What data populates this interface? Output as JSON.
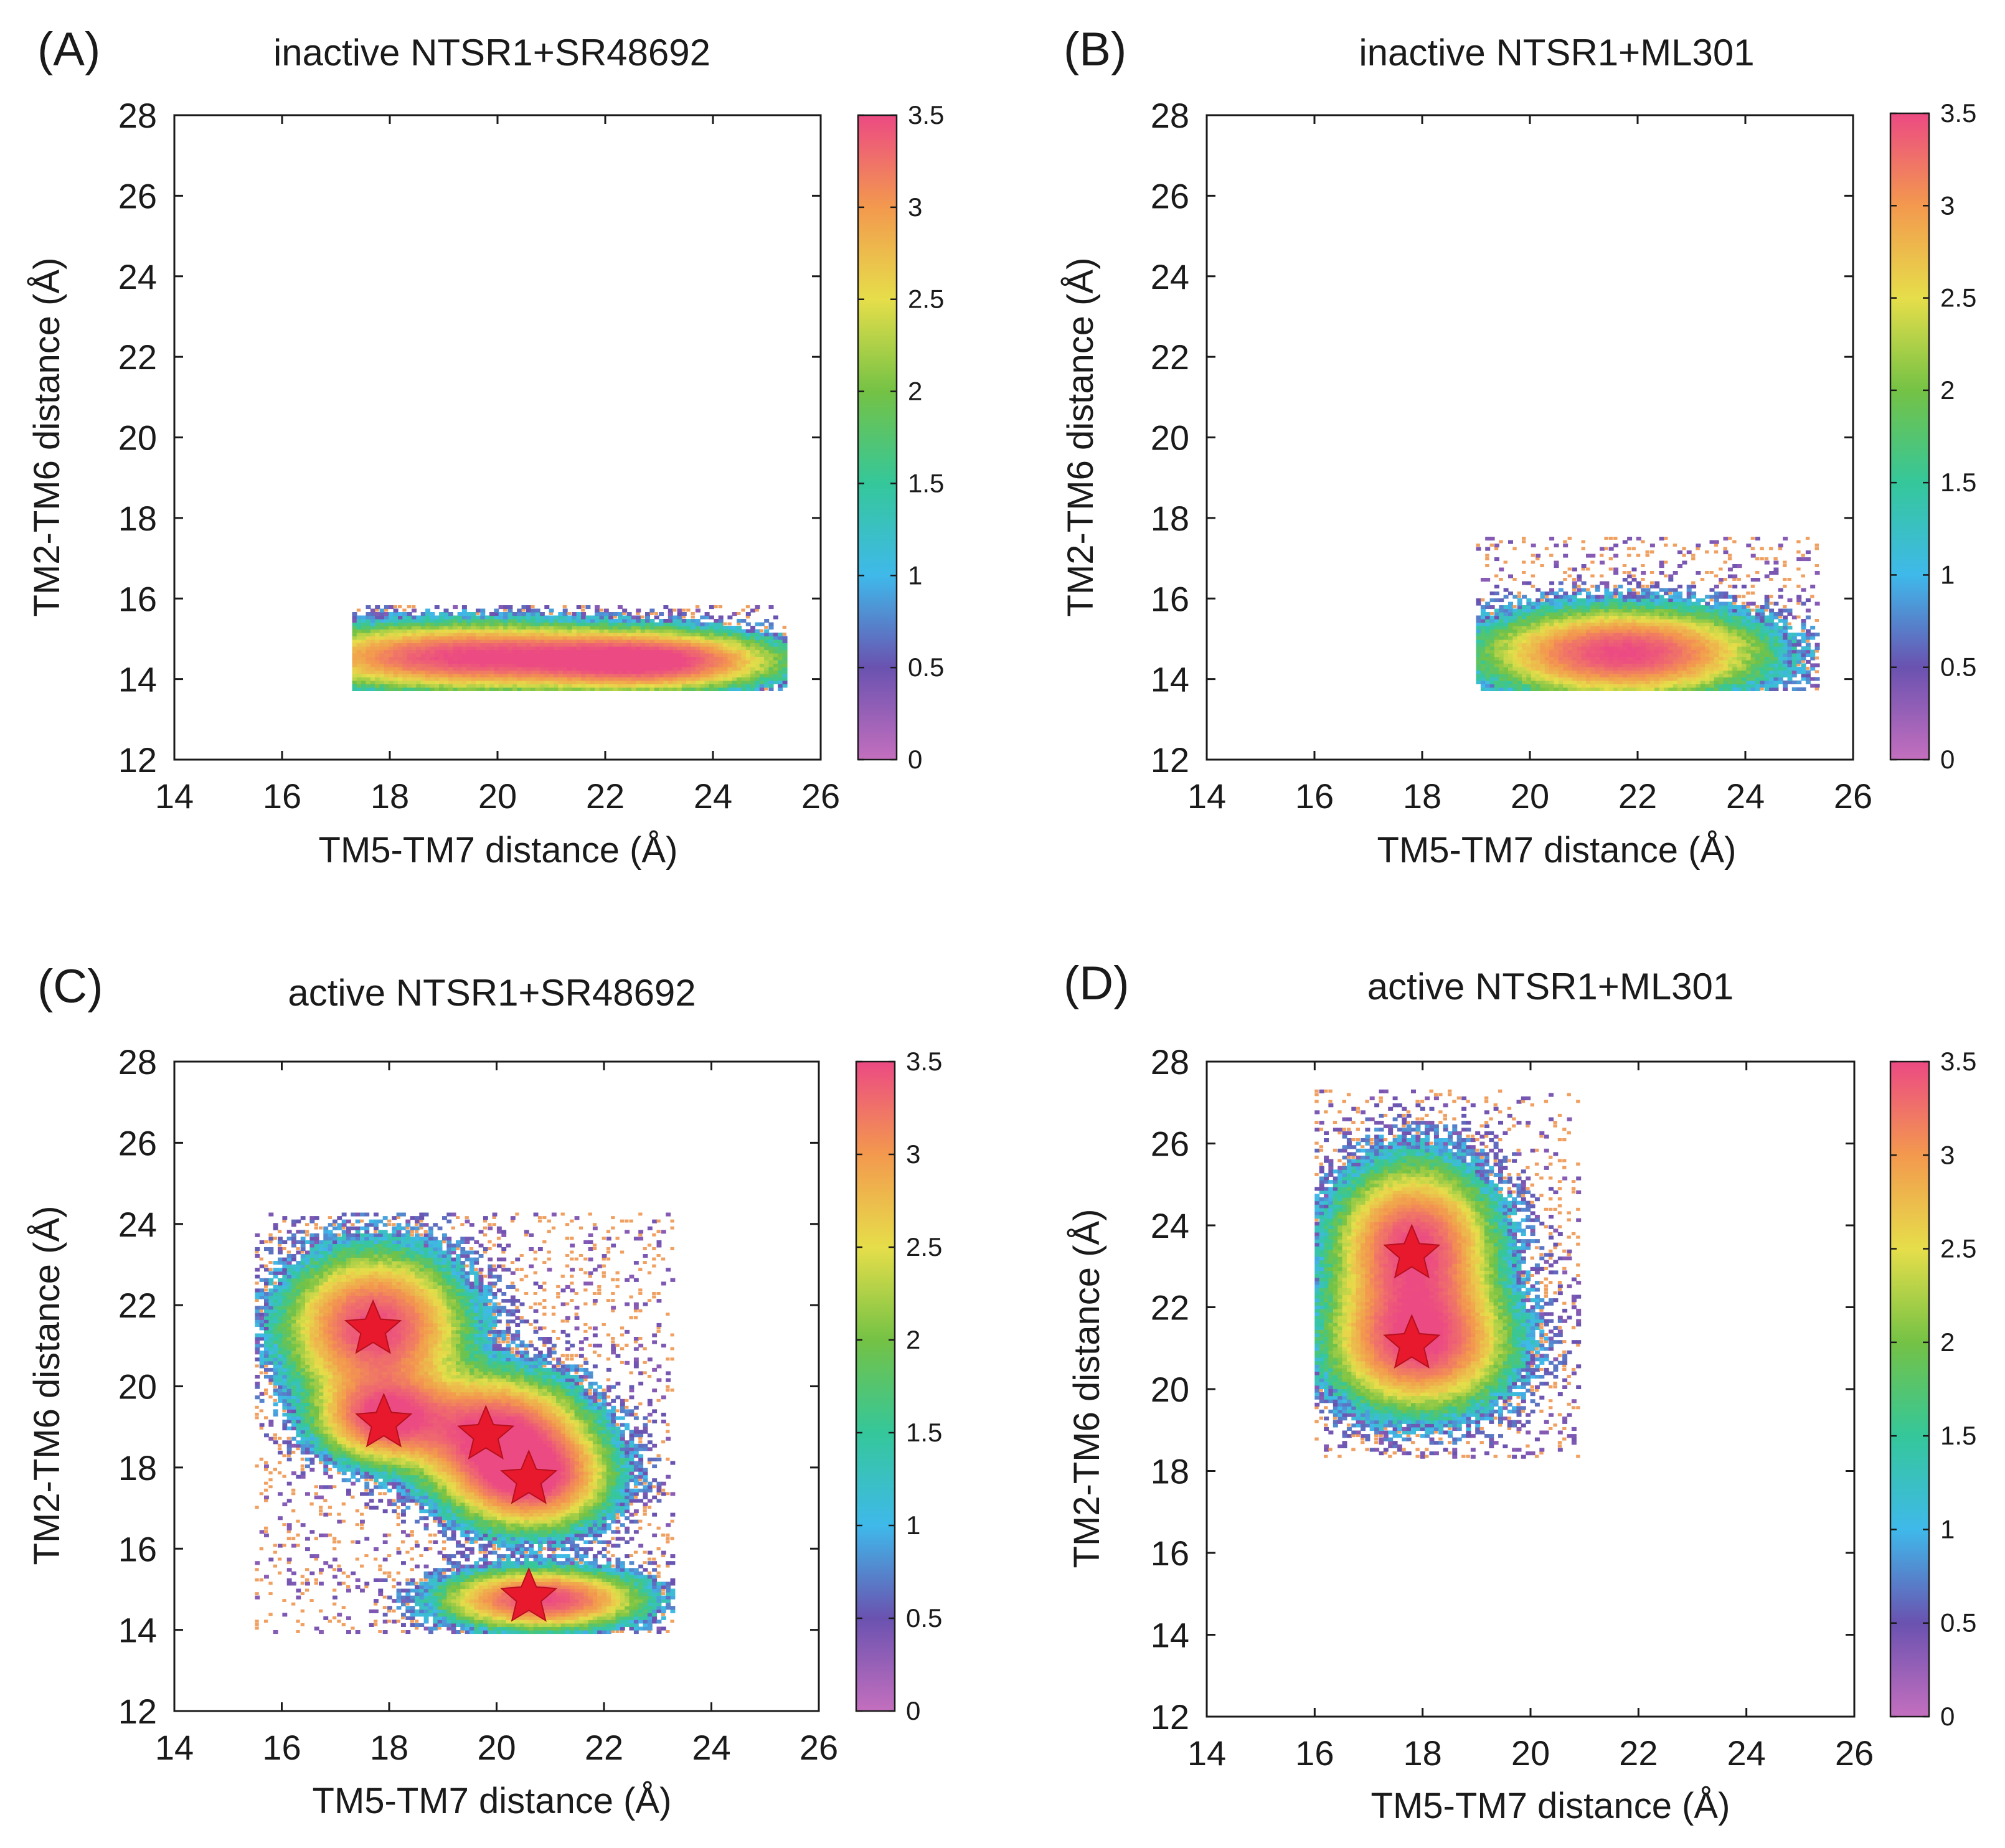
{
  "figure": {
    "panels": [
      {
        "id": "A",
        "letter": "(A)",
        "title": "inactive NTSR1+SR48692"
      },
      {
        "id": "B",
        "letter": "(B)",
        "title": "inactive NTSR1+ML301"
      },
      {
        "id": "C",
        "letter": "(C)",
        "title": "active NTSR1+SR48692"
      },
      {
        "id": "D",
        "letter": "(D)",
        "title": "active NTSR1+ML301"
      }
    ]
  },
  "chart_data": [
    {
      "type": "heatmap",
      "title": "inactive NTSR1+SR48692",
      "panel_label": "(A)",
      "xlabel": "TM5-TM7 distance (Å)",
      "ylabel": "TM2-TM6 distance (Å)",
      "xlim": [
        14,
        26
      ],
      "ylim": [
        12,
        28
      ],
      "xticks": [
        14,
        16,
        18,
        20,
        22,
        24,
        26
      ],
      "yticks": [
        12,
        14,
        16,
        18,
        20,
        22,
        24,
        26,
        28
      ],
      "colorbar": {
        "min": 0,
        "max": 3.5,
        "ticks": [
          "0",
          "0.5",
          "1",
          "1.5",
          "2",
          "2.5",
          "3",
          "3.5"
        ],
        "colors": [
          "#c46fbe",
          "#6a52b0",
          "#3fb9ea",
          "#35c79a",
          "#74c245",
          "#e6de4a",
          "#f3994e",
          "#ec4a83"
        ]
      },
      "basins": [
        {
          "x": 19.5,
          "y": 14.5,
          "sx": 1.9,
          "sy": 0.45
        },
        {
          "x": 22.8,
          "y": 14.4,
          "sx": 1.3,
          "sy": 0.4
        }
      ],
      "extent": {
        "x": [
          17.3,
          25.3
        ],
        "y": [
          13.7,
          15.8
        ]
      },
      "stars": []
    },
    {
      "type": "heatmap",
      "title": "inactive NTSR1+ML301",
      "panel_label": "(B)",
      "xlabel": "TM5-TM7 distance (Å)",
      "ylabel": "TM2-TM6 distance (Å)",
      "xlim": [
        14,
        26
      ],
      "ylim": [
        12,
        28
      ],
      "xticks": [
        14,
        16,
        18,
        20,
        22,
        24,
        26
      ],
      "yticks": [
        12,
        14,
        16,
        18,
        20,
        22,
        24,
        26,
        28
      ],
      "colorbar": {
        "min": 0,
        "max": 3.5,
        "ticks": [
          "0",
          "0.5",
          "1",
          "1.5",
          "2",
          "2.5",
          "3",
          "3.5"
        ],
        "colors": [
          "#c46fbe",
          "#6a52b0",
          "#3fb9ea",
          "#35c79a",
          "#74c245",
          "#e6de4a",
          "#f3994e",
          "#ec4a83"
        ]
      },
      "basins": [
        {
          "x": 21.7,
          "y": 14.6,
          "sx": 1.4,
          "sy": 0.6
        }
      ],
      "extent": {
        "x": [
          19.0,
          25.3
        ],
        "y": [
          13.7,
          17.5
        ]
      },
      "stars": []
    },
    {
      "type": "heatmap",
      "title": "active NTSR1+SR48692",
      "panel_label": "(C)",
      "xlabel": "TM5-TM7 distance (Å)",
      "ylabel": "TM2-TM6 distance (Å)",
      "xlim": [
        14,
        26
      ],
      "ylim": [
        12,
        28
      ],
      "xticks": [
        14,
        16,
        18,
        20,
        22,
        24,
        26
      ],
      "yticks": [
        12,
        14,
        16,
        18,
        20,
        22,
        24,
        26,
        28
      ],
      "colorbar": {
        "min": 0,
        "max": 3.5,
        "ticks": [
          "0",
          "0.5",
          "1",
          "1.5",
          "2",
          "2.5",
          "3",
          "3.5"
        ],
        "colors": [
          "#c46fbe",
          "#6a52b0",
          "#3fb9ea",
          "#35c79a",
          "#74c245",
          "#e6de4a",
          "#f3994e",
          "#ec4a83"
        ]
      },
      "basins": [
        {
          "x": 17.7,
          "y": 21.4,
          "sx": 0.9,
          "sy": 1.0
        },
        {
          "x": 17.9,
          "y": 19.2,
          "sx": 0.7,
          "sy": 0.6
        },
        {
          "x": 19.9,
          "y": 18.8,
          "sx": 0.9,
          "sy": 0.8
        },
        {
          "x": 20.6,
          "y": 17.7,
          "sx": 0.8,
          "sy": 0.7
        },
        {
          "x": 20.8,
          "y": 14.7,
          "sx": 1.0,
          "sy": 0.4
        }
      ],
      "extent": {
        "x": [
          15.5,
          23.3
        ],
        "y": [
          13.9,
          24.2
        ]
      },
      "stars": [
        {
          "x": 17.7,
          "y": 21.4
        },
        {
          "x": 17.9,
          "y": 19.1
        },
        {
          "x": 19.8,
          "y": 18.8
        },
        {
          "x": 20.6,
          "y": 17.7
        },
        {
          "x": 20.6,
          "y": 14.8
        }
      ]
    },
    {
      "type": "heatmap",
      "title": "active NTSR1+ML301",
      "panel_label": "(D)",
      "xlabel": "TM5-TM7 distance (Å)",
      "ylabel": "TM2-TM6 distance (Å)",
      "xlim": [
        14,
        26
      ],
      "ylim": [
        12,
        28
      ],
      "xticks": [
        14,
        16,
        18,
        20,
        22,
        24,
        26
      ],
      "yticks": [
        12,
        14,
        16,
        18,
        20,
        22,
        24,
        26,
        28
      ],
      "colorbar": {
        "min": 0,
        "max": 3.5,
        "ticks": [
          "0",
          "0.5",
          "1",
          "1.5",
          "2",
          "2.5",
          "3",
          "3.5"
        ],
        "colors": [
          "#c46fbe",
          "#6a52b0",
          "#3fb9ea",
          "#35c79a",
          "#74c245",
          "#e6de4a",
          "#f3994e",
          "#ec4a83"
        ]
      },
      "basins": [
        {
          "x": 17.8,
          "y": 23.4,
          "sx": 0.8,
          "sy": 1.1
        },
        {
          "x": 17.9,
          "y": 21.1,
          "sx": 0.9,
          "sy": 0.9
        }
      ],
      "extent": {
        "x": [
          16.0,
          20.9
        ],
        "y": [
          18.3,
          27.3
        ]
      },
      "stars": [
        {
          "x": 17.8,
          "y": 23.3
        },
        {
          "x": 17.8,
          "y": 21.1
        }
      ]
    }
  ]
}
